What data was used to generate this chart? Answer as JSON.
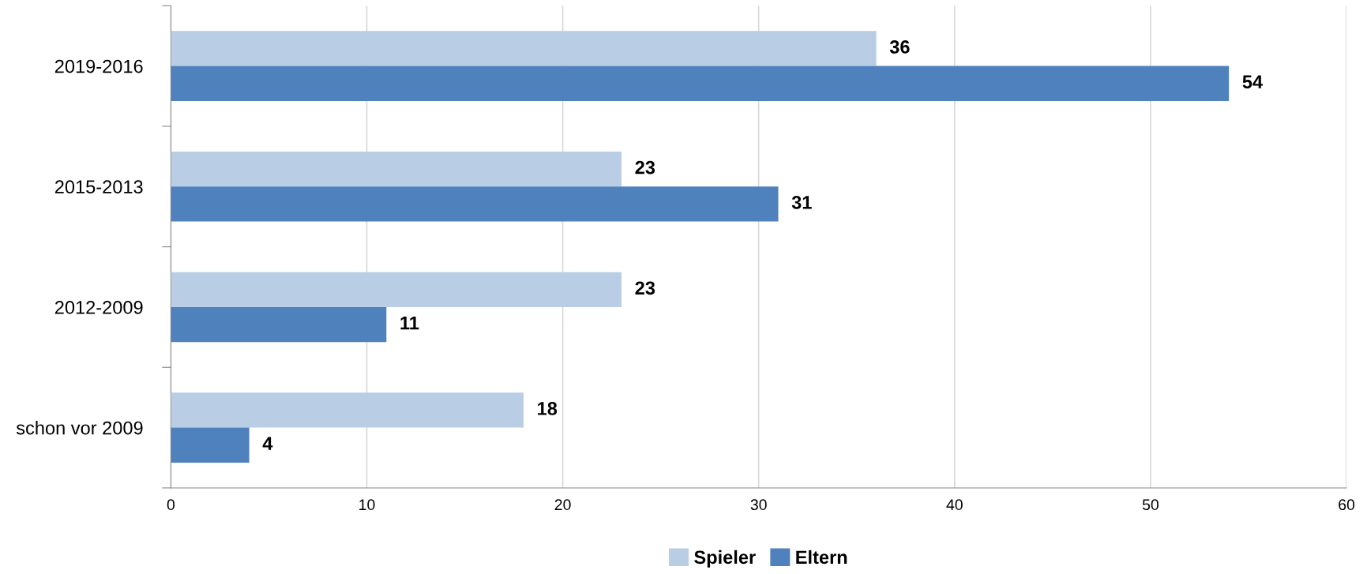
{
  "chart_data": {
    "type": "bar",
    "orientation": "horizontal",
    "categories": [
      "2019-2016",
      "2015-2013",
      "2012-2009",
      "schon vor 2009"
    ],
    "series": [
      {
        "name": "Spieler",
        "color": "#b9cde5",
        "values": [
          36,
          23,
          23,
          18
        ]
      },
      {
        "name": "Eltern",
        "color": "#4f81bd",
        "values": [
          54,
          31,
          11,
          4
        ]
      }
    ],
    "xlim": [
      0,
      60
    ],
    "xticks": [
      0,
      10,
      20,
      30,
      40,
      50,
      60
    ],
    "grid": "x",
    "legend": "bottom",
    "data_labels": true
  }
}
